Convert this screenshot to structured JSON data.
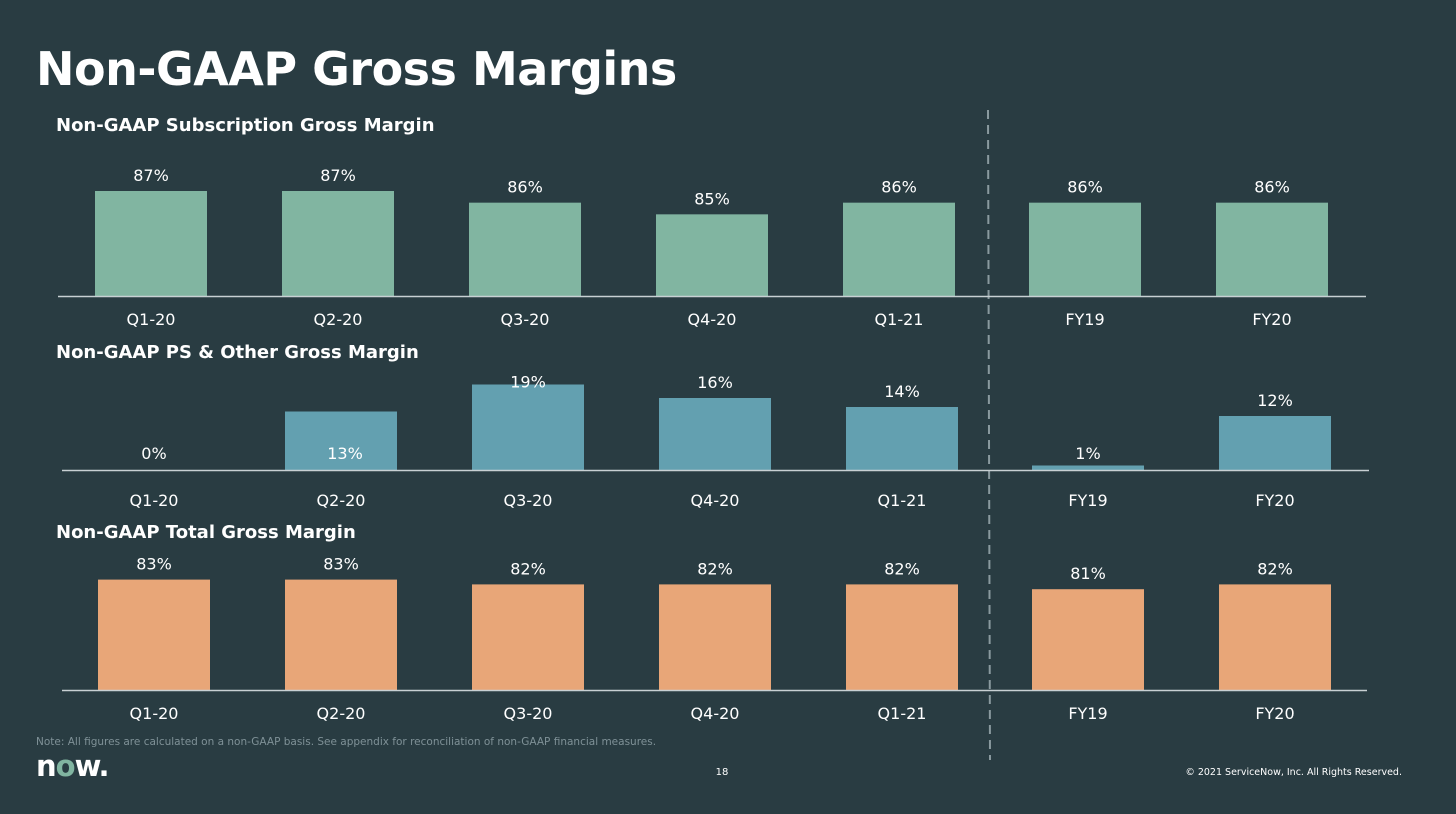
{
  "slide": {
    "title": "Non-GAAP Gross Margins",
    "note": "Note: All figures are calculated on a non-GAAP basis. See appendix for reconciliation of non-GAAP financial measures.",
    "logo": {
      "text_prefix": "n",
      "text_o": "o",
      "text_suffix": "w.",
      "brand": "now."
    },
    "page_number": "18",
    "copyright": "© 2021 ServiceNow, Inc. All Rights Reserved."
  },
  "colors": {
    "background": "#293c42",
    "subscription": "#81b5a1",
    "ps_other": "#63a0b0",
    "total": "#e8a678",
    "divider": "#8a9a9f",
    "baseline": "#c8d0d3"
  },
  "chart_data": [
    {
      "type": "bar",
      "title": "Non-GAAP Subscription Gross Margin",
      "categories": [
        "Q1-20",
        "Q2-20",
        "Q3-20",
        "Q4-20",
        "Q1-21",
        "FY19",
        "FY20"
      ],
      "values": [
        87,
        87,
        86,
        85,
        86,
        86,
        86
      ],
      "value_labels": [
        "87%",
        "87%",
        "86%",
        "85%",
        "86%",
        "86%",
        "86%"
      ],
      "unit": "%",
      "ylim": [
        78,
        90
      ],
      "grid": false,
      "legend": "none"
    },
    {
      "type": "bar",
      "title": "Non-GAAP PS & Other Gross Margin",
      "categories": [
        "Q1-20",
        "Q2-20",
        "Q3-20",
        "Q4-20",
        "Q1-21",
        "FY19",
        "FY20"
      ],
      "values": [
        0,
        13,
        19,
        16,
        14,
        1,
        12
      ],
      "value_labels": [
        "0%",
        "13%",
        "19%",
        "16%",
        "14%",
        "1%",
        "12%"
      ],
      "unit": "%",
      "ylim": [
        0,
        20
      ],
      "grid": false,
      "legend": "none"
    },
    {
      "type": "bar",
      "title": "Non-GAAP Total Gross Margin",
      "categories": [
        "Q1-20",
        "Q2-20",
        "Q3-20",
        "Q4-20",
        "Q1-21",
        "FY19",
        "FY20"
      ],
      "values": [
        83,
        83,
        82,
        82,
        82,
        81,
        82
      ],
      "value_labels": [
        "83%",
        "83%",
        "82%",
        "82%",
        "82%",
        "81%",
        "82%"
      ],
      "unit": "%",
      "ylim": [
        60,
        85
      ],
      "grid": false,
      "legend": "none"
    }
  ]
}
